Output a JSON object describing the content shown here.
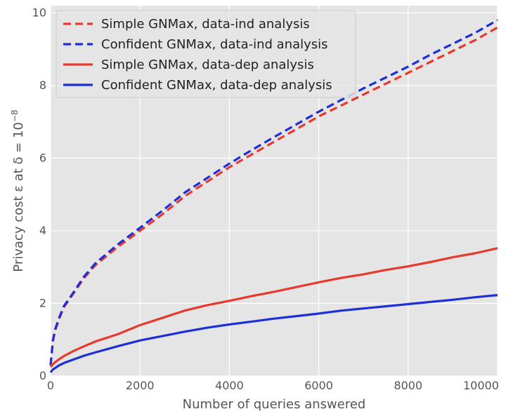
{
  "chart_data": {
    "type": "line",
    "title": "",
    "xlabel": "Number of queries answered",
    "ylabel": "Privacy cost ε at δ = 10⁻⁸",
    "ylabel_parts": {
      "main": "Privacy cost ε at δ = 10",
      "exponent": "−8"
    },
    "xlim": [
      0,
      10000
    ],
    "ylim": [
      0,
      10.2
    ],
    "xticks": [
      0,
      2000,
      4000,
      6000,
      8000,
      10000
    ],
    "xtick_labels": [
      "0",
      "2000",
      "4000",
      "6000",
      "8000",
      "10000"
    ],
    "yticks": [
      0,
      2,
      4,
      6,
      8,
      10
    ],
    "ytick_labels": [
      "0",
      "2",
      "4",
      "6",
      "8",
      "10"
    ],
    "grid": true,
    "legend_position": "upper-left",
    "x": [
      0,
      50,
      100,
      200,
      300,
      500,
      750,
      1000,
      1500,
      2000,
      2500,
      3000,
      3500,
      4000,
      4500,
      5000,
      5500,
      6000,
      6500,
      7000,
      7500,
      8000,
      8500,
      9000,
      9500,
      10000
    ],
    "series": [
      {
        "name": "Simple GNMax, data-ind analysis",
        "color": "#e8392f",
        "style": "dashed",
        "values": [
          0.3,
          0.95,
          1.25,
          1.6,
          1.9,
          2.25,
          2.7,
          3.05,
          3.55,
          4.0,
          4.45,
          4.95,
          5.35,
          5.75,
          6.1,
          6.45,
          6.8,
          7.15,
          7.45,
          7.75,
          8.05,
          8.35,
          8.65,
          8.95,
          9.25,
          9.6
        ]
      },
      {
        "name": "Confident GNMax, data-ind analysis",
        "color": "#1d2fd8",
        "style": "dashed",
        "values": [
          0.3,
          0.97,
          1.28,
          1.63,
          1.93,
          2.28,
          2.74,
          3.1,
          3.62,
          4.08,
          4.55,
          5.05,
          5.45,
          5.85,
          6.22,
          6.58,
          6.93,
          7.28,
          7.6,
          7.92,
          8.22,
          8.52,
          8.85,
          9.15,
          9.45,
          9.8
        ]
      },
      {
        "name": "Simple GNMax, data-dep analysis",
        "color": "#e8392f",
        "style": "solid",
        "values": [
          0.25,
          0.32,
          0.38,
          0.47,
          0.55,
          0.68,
          0.82,
          0.95,
          1.15,
          1.4,
          1.6,
          1.8,
          1.95,
          2.07,
          2.2,
          2.32,
          2.45,
          2.58,
          2.7,
          2.8,
          2.92,
          3.02,
          3.14,
          3.27,
          3.38,
          3.52
        ]
      },
      {
        "name": "Confident GNMax, data-dep analysis",
        "color": "#1d2fd8",
        "style": "solid",
        "values": [
          0.1,
          0.18,
          0.22,
          0.3,
          0.36,
          0.45,
          0.56,
          0.65,
          0.82,
          0.98,
          1.1,
          1.22,
          1.33,
          1.42,
          1.5,
          1.58,
          1.65,
          1.72,
          1.8,
          1.86,
          1.92,
          1.98,
          2.04,
          2.1,
          2.17,
          2.23
        ]
      }
    ]
  }
}
